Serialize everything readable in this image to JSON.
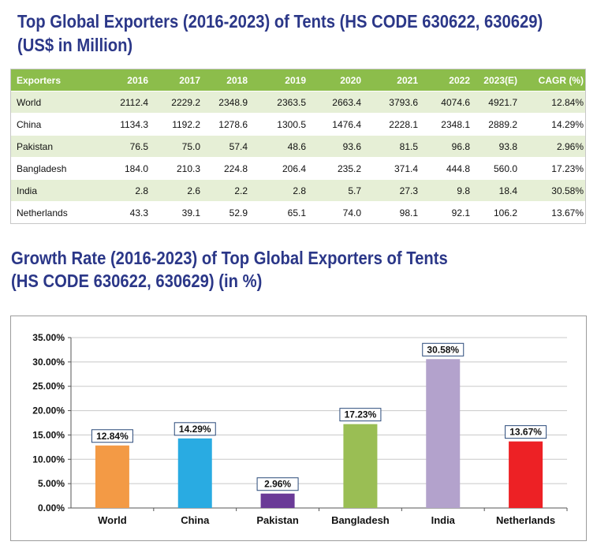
{
  "table_section": {
    "title_line1": "Top Global Exporters (2016-2023) of Tents (HS CODE 630622, 630629)",
    "title_line2": "(US$ in Million)",
    "headers": [
      "Exporters",
      "2016",
      "2017",
      "2018",
      "2019",
      "2020",
      "2021",
      "2022",
      "2023(E)",
      "CAGR (%)"
    ],
    "rows": [
      [
        "World",
        "2112.4",
        "2229.2",
        "2348.9",
        "2363.5",
        "2663.4",
        "3793.6",
        "4074.6",
        "4921.7",
        "12.84%"
      ],
      [
        "China",
        "1134.3",
        "1192.2",
        "1278.6",
        "1300.5",
        "1476.4",
        "2228.1",
        "2348.1",
        "2889.2",
        "14.29%"
      ],
      [
        "Pakistan",
        "76.5",
        "75.0",
        "57.4",
        "48.6",
        "93.6",
        "81.5",
        "96.8",
        "93.8",
        "2.96%"
      ],
      [
        "Bangladesh",
        "184.0",
        "210.3",
        "224.8",
        "206.4",
        "235.2",
        "371.4",
        "444.8",
        "560.0",
        "17.23%"
      ],
      [
        "India",
        "2.8",
        "2.6",
        "2.2",
        "2.8",
        "5.7",
        "27.3",
        "9.8",
        "18.4",
        "30.58%"
      ],
      [
        "Netherlands",
        "43.3",
        "39.1",
        "52.9",
        "65.1",
        "74.0",
        "98.1",
        "92.1",
        "106.2",
        "13.67%"
      ]
    ]
  },
  "chart_section": {
    "title_line1": "Growth Rate (2016-2023) of Top Global Exporters of Tents",
    "title_line2": "(HS CODE 630622, 630629) (in %)"
  },
  "chart_data": {
    "type": "bar",
    "title": "Growth Rate (2016-2023) of Top Global Exporters of Tents (HS CODE 630622, 630629) (in %)",
    "categories": [
      "World",
      "China",
      "Pakistan",
      "Bangladesh",
      "India",
      "Netherlands"
    ],
    "values": [
      12.84,
      14.29,
      2.96,
      17.23,
      30.58,
      13.67
    ],
    "data_labels": [
      "12.84%",
      "14.29%",
      "2.96%",
      "17.23%",
      "30.58%",
      "13.67%"
    ],
    "colors": [
      "#f39a45",
      "#29abe2",
      "#6a3a97",
      "#9abe54",
      "#b3a2cc",
      "#ed2125"
    ],
    "ylim": [
      0,
      35
    ],
    "yticks": [
      0,
      5,
      10,
      15,
      20,
      25,
      30,
      35
    ],
    "ytick_labels": [
      "0.00%",
      "5.00%",
      "10.00%",
      "15.00%",
      "20.00%",
      "25.00%",
      "30.00%",
      "35.00%"
    ],
    "grid": true,
    "xlabel": "",
    "ylabel": ""
  }
}
